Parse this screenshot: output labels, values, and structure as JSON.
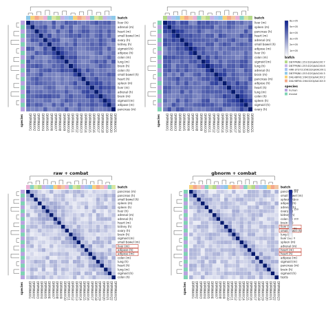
{
  "chart_data": [
    {
      "type": "heatmap",
      "title": "",
      "batch_label": "batch",
      "species_label": "species",
      "row_labels": [
        "liver (h)",
        "adrenal (m)",
        "heart (m)",
        "small bowel (m)",
        "ovary (h)",
        "kidney (h)",
        "sigmoid (h)",
        "adipose (h)",
        "colon (m)",
        "lung (m)",
        "brain (h)",
        "colon (h)",
        "small bowel (h)",
        "heart (h)",
        "spleen (m)",
        "liver (m)",
        "adrenal (h)",
        "brain (m)",
        "sigmoid (m)",
        "adipose (m)",
        "pancreas (m)"
      ],
      "col_labels": [
        "DRPRMAXX1",
        "DRPRMAXX2",
        "DRPRMAXX3",
        "DRPRMAXX4",
        "DRPRMAXX5",
        "DRPRMAXX6",
        "DRPRMAXX7",
        "DRPRMAXX8",
        "DRPRMAXX9",
        "DRPRMAXX10",
        "DRPRMAXX11",
        "DRPRMAXX12",
        "DRPRMAXX13",
        "DRPRMAXX14",
        "DRPRMAXX15",
        "DRPRMAXX16",
        "DRPRMAXX17",
        "DRPRMAXX18",
        "DRPRMAXX19",
        "DRPRMAXX20",
        "DRPRMAXX21"
      ],
      "base_value": 0.62,
      "value_range": [
        0,
        1
      ],
      "colors": {
        "low": "#ffffff",
        "high": "#0a1e8c",
        "diagonal": "#061a6e"
      }
    },
    {
      "type": "heatmap",
      "title": "",
      "batch_label": "batch",
      "species_label": "species",
      "row_labels": [
        "liver (m)",
        "spleen (m)",
        "pancreas (h)",
        "heart (m)",
        "adrenal (m)",
        "small bowel (h)",
        "adipose (m)",
        "liver (h)",
        "colon (m)",
        "sigmoid (m)",
        "lung (h)",
        "adrenal (h)",
        "brain (m)",
        "pancreas (m)",
        "adipose (h)",
        "heart (h)",
        "lung (m)",
        "colon (h)",
        "spleen (h)",
        "sigmoid (h)",
        "ovary (h)"
      ],
      "col_labels": [
        "DRPRMAXX1",
        "DRPRMAXX2",
        "DRPRMAXX3",
        "DRPRMAXX4",
        "DRPRMAXX5",
        "DRPRMAXX6",
        "DRPRMAXX7",
        "DRPRMAXX8",
        "DRPRMAXX9",
        "DRPRMAXX10",
        "DRPRMAXX11",
        "DRPRMAXX12",
        "DRPRMAXX13",
        "DRPRMAXX14",
        "DRPRMAXX15",
        "DRPRMAXX16",
        "DRPRMAXX17",
        "DRPRMAXX18",
        "DRPRMAXX19",
        "DRPRMAXX20",
        "DRPRMAXX21"
      ],
      "base_value": 0.65,
      "value_range": [
        0,
        1
      ],
      "colors": {
        "low": "#ffffff",
        "high": "#0a1e8c",
        "diagonal": "#061a6e"
      },
      "scale_ticks": [
        "6e+05",
        "5e+05",
        "4e+05",
        "3e+05",
        "2e+05",
        "1e+05",
        "0"
      ],
      "batch_legend": [
        "D87PMJN1:253:D2GJAACXX:7",
        "D87PMJN1:253:D2GJAACXX:8",
        "HWI-ST373:356:D2GJAACXX:1",
        "D87PMJN1:253:D2GJAACXX:3",
        "D4LH8FN1:264:D2GJAACXX:2",
        "D4LH8FN1:264:D2GJAACXX:3"
      ],
      "species_legend": [
        "human",
        "mouse"
      ]
    },
    {
      "type": "heatmap",
      "title": "raw + combat",
      "batch_label": "batch",
      "species_label": "species",
      "row_labels": [
        "pancreas (m)",
        "pancreas (h)",
        "small bowel (h)",
        "spleen (m)",
        "spleen (h)",
        "liver (h)",
        "adrenal (m)",
        "adrenal (h)",
        "heart (m)",
        "kidney (h)",
        "ovary (h)",
        "brain (h)",
        "sigmoid (m)",
        "small bowel (m)",
        "liver (m)",
        "adipose (h)",
        "adipose (m)",
        "colon (m)",
        "lung (h)",
        "heart (h)",
        "lung (m)",
        "sigmoid (h)",
        "colon (h)"
      ],
      "col_labels": [
        "DRPRMAXX1",
        "DRPRMAXX2",
        "DRPRMAXX3",
        "DRPRMAXX4",
        "DRPRMAXX5",
        "DRPRMAXX6",
        "DRPRMAXX7",
        "DRPRMAXX8",
        "DRPRMAXX9",
        "DRPRMAXX10",
        "DRPRMAXX11",
        "DRPRMAXX12",
        "DRPRMAXX13",
        "DRPRMAXX14",
        "DRPRMAXX15",
        "DRPRMAXX16",
        "DRPRMAXX17",
        "DRPRMAXX18",
        "DRPRMAXX19",
        "DRPRMAXX20",
        "DRPRMAXX21",
        "DRPRMAXX22",
        "DRPRMAXX23"
      ],
      "base_value": 0.22,
      "value_range": [
        0,
        1
      ],
      "colors": {
        "low": "#ffffff",
        "high": "#0a1e8c",
        "diagonal": "#061a6e"
      },
      "highlight_rows": [
        14,
        15,
        16
      ]
    },
    {
      "type": "heatmap",
      "title": "gbnorm + combat",
      "batch_label": "batch",
      "species_label": "species",
      "row_labels": [
        "pancreas (h)",
        "small bowel (m)",
        "spleen (h)",
        "adipose (h)",
        "adrenal (h)",
        "ovary (h)",
        "kidney (h)",
        "colon (h)",
        "brain (m)",
        "liver (h)",
        "small bowel (h)",
        "lung (m)",
        "liver (m)",
        "spleen (m)",
        "adrenal (m)",
        "heart (m)",
        "heart (h)",
        "adipose (m)",
        "sigmoid (m)",
        "pancreas (m)",
        "brain (h)",
        "sigmoid (h)",
        "testis"
      ],
      "col_labels": [
        "DRPRMAXX1",
        "DRPRMAXX2",
        "DRPRMAXX3",
        "DRPRMAXX4",
        "DRPRMAXX5",
        "DRPRMAXX6",
        "DRPRMAXX7",
        "DRPRMAXX8",
        "DRPRMAXX9",
        "DRPRMAXX10",
        "DRPRMAXX11",
        "DRPRMAXX12",
        "DRPRMAXX13",
        "DRPRMAXX14",
        "DRPRMAXX15",
        "DRPRMAXX16",
        "DRPRMAXX17",
        "DRPRMAXX18",
        "DRPRMAXX19",
        "DRPRMAXX20",
        "DRPRMAXX21",
        "DRPRMAXX22",
        "DRPRMAXX23"
      ],
      "base_value": 0.22,
      "value_range": [
        0,
        1
      ],
      "colors": {
        "low": "#ffffff",
        "high": "#0a1e8c",
        "diagonal": "#061a6e"
      },
      "scale_ticks": [
        "250",
        "200",
        "150",
        "100",
        "50",
        "0"
      ],
      "highlight_rows": [
        9,
        10,
        15,
        16
      ]
    }
  ],
  "batch_palette": [
    "#8ec9e8",
    "#b5d98a",
    "#e9b0d6",
    "#f6d27a",
    "#c7b3e5",
    "#86d3c5",
    "#f4a88a",
    "#a8c2f0",
    "#d8e6a0",
    "#f2c6a4"
  ],
  "species_palette": [
    "#b9a3e0",
    "#7fd3b4"
  ]
}
